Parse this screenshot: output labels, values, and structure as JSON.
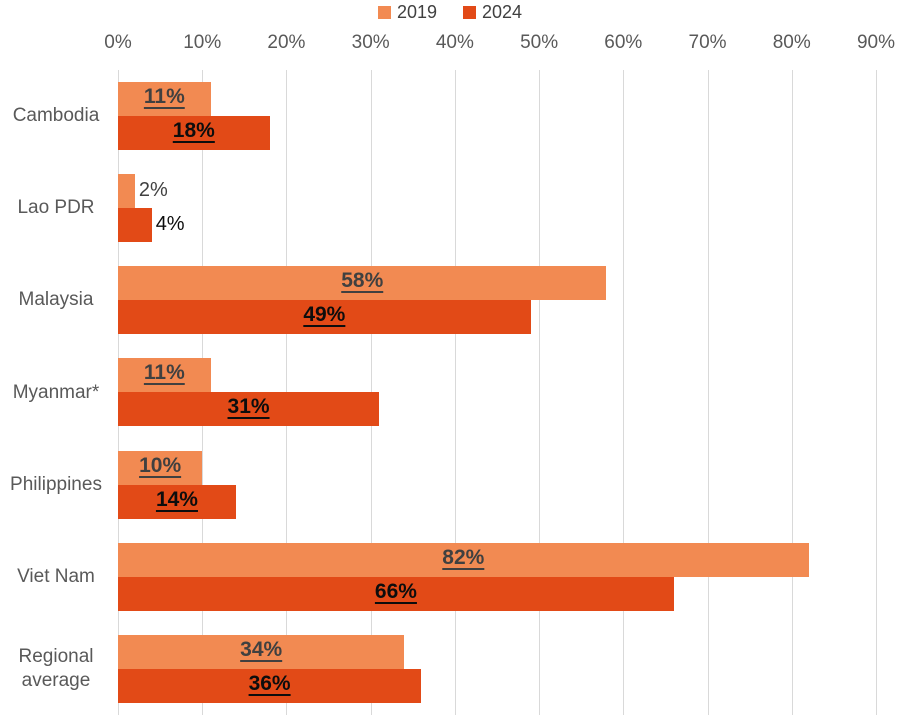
{
  "chart_data": {
    "type": "bar",
    "orientation": "horizontal",
    "title": "",
    "xlabel": "",
    "ylabel": "",
    "categories": [
      "Cambodia",
      "Lao PDR",
      "Malaysia",
      "Myanmar*",
      "Philippines",
      "Viet Nam",
      "Regional average"
    ],
    "series": [
      {
        "name": "2019",
        "color": "#F28A52",
        "label_color": "#404040",
        "values": [
          11,
          2,
          58,
          11,
          10,
          82,
          34
        ]
      },
      {
        "name": "2024",
        "color": "#E24A17",
        "label_color": "#0D0D0D",
        "values": [
          18,
          4,
          49,
          31,
          14,
          66,
          36
        ]
      }
    ],
    "value_suffix": "%",
    "x_ticks": [
      "0%",
      "10%",
      "20%",
      "30%",
      "40%",
      "50%",
      "60%",
      "70%",
      "80%",
      "90%"
    ],
    "xlim": [
      0,
      90
    ],
    "grid": true,
    "legend_position": "top",
    "axis_text_color": "#595959",
    "gridline_color": "#D9D9D9",
    "label_style_inside": "bold-underline",
    "label_style_outside": "plain"
  }
}
